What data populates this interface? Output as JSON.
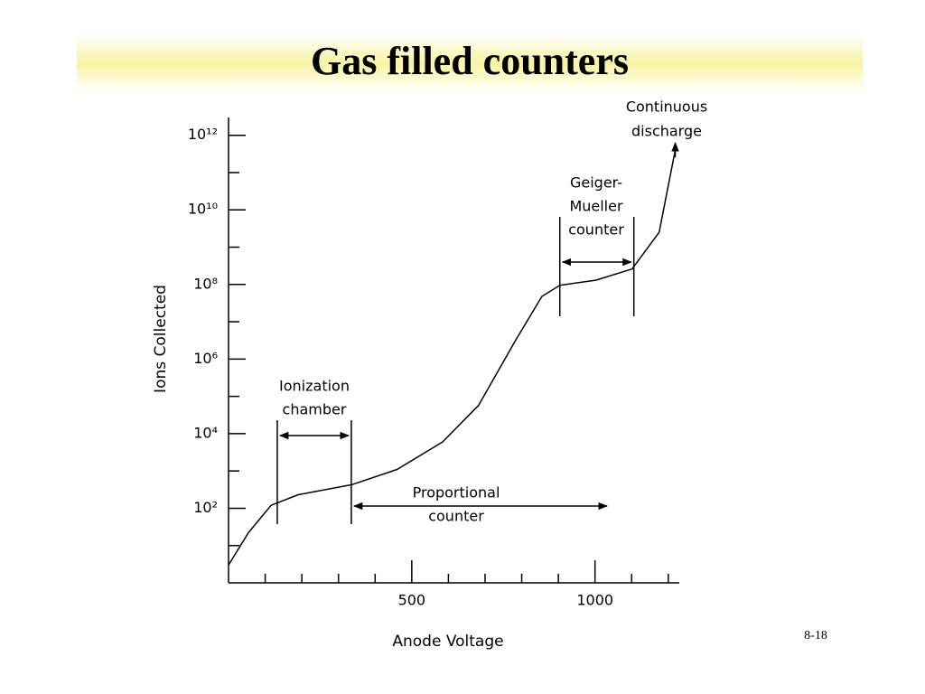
{
  "slide_title": "Gas filled counters",
  "page_number": "8-18",
  "chart_data": {
    "type": "line",
    "y_scale": "log",
    "x_label": "Anode Voltage",
    "y_label": "Ions Collected",
    "color": "#000000",
    "x": [
      0,
      54,
      116,
      190,
      337,
      460,
      584,
      682,
      781,
      855,
      904,
      1002,
      1101,
      1175,
      1219
    ],
    "values": [
      3,
      22,
      120,
      230,
      430,
      1100,
      6000,
      57000,
      2900000,
      48000000,
      95000000,
      130000000,
      260000000,
      2500000000,
      400000000000
    ],
    "xlim": [
      0,
      1230
    ],
    "xticks": [
      500,
      1000
    ],
    "xminorticks": [
      100,
      200,
      300,
      400,
      600,
      700,
      800,
      900,
      1100,
      1200
    ],
    "ylim": [
      1,
      3000000000000
    ],
    "yticks": [
      {
        "value": 100,
        "label": "10²"
      },
      {
        "value": 10000,
        "label": "10⁴"
      },
      {
        "value": 1000000,
        "label": "10⁶"
      },
      {
        "value": 100000000,
        "label": "10⁸"
      },
      {
        "value": 10000000000,
        "label": "10¹⁰"
      },
      {
        "value": 1000000000000,
        "label": "10¹²"
      }
    ],
    "yminorticks": [
      10,
      1000,
      100000,
      10000000,
      1000000000,
      100000000000
    ],
    "regions": [
      {
        "label_lines": [
          "Ionization",
          "chamber"
        ],
        "x": [
          133,
          335
        ],
        "bracketed": true
      },
      {
        "label_lines": [
          "Proportional",
          "counter"
        ],
        "x": [
          335,
          1040
        ],
        "bracketed": false
      },
      {
        "label_lines": [
          "Geiger-",
          "Mueller",
          "counter"
        ],
        "x": [
          904,
          1106
        ],
        "bracketed": true
      }
    ],
    "end_label_lines": [
      "Continuous",
      "discharge"
    ]
  }
}
